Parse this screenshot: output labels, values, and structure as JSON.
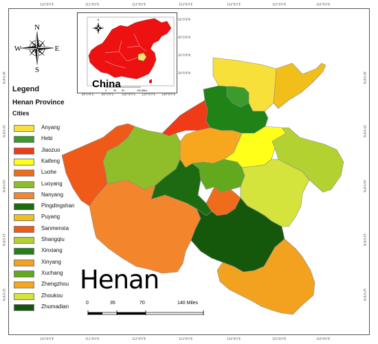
{
  "title": "Henan",
  "inset": {
    "label": "China",
    "scale_labels": [
      "0",
      "25",
      "50",
      "100 Miles"
    ],
    "lon_labels": [
      "60°0'0\"E",
      "80°0'0\"E",
      "100°0'0\"E",
      "120°0'0\"E",
      "140°0'0\"E"
    ],
    "lat_labels": [
      "50°0'0\"N",
      "40°0'0\"N",
      "30°0'0\"N",
      "20°0'0\"N"
    ]
  },
  "frame": {
    "lon_labels": [
      "110°0'0\"E",
      "111°0'0\"E",
      "112°0'0\"E",
      "113°0'0\"E",
      "114°0'0\"E",
      "115°0'0\"E",
      "116°0'0\"E"
    ],
    "lat_labels": [
      "36°0'0\"N",
      "35°0'0\"N",
      "34°0'0\"N",
      "33°0'0\"N",
      "32°0'0\"N"
    ]
  },
  "legend": {
    "title": "Legend",
    "subtitle": "Henan Province",
    "group_label": "Cities",
    "items": [
      {
        "label": "Anyang",
        "color": "#f7e03a"
      },
      {
        "label": "Hebi",
        "color": "#3b9b2b"
      },
      {
        "label": "Jiaozuo",
        "color": "#ef3b16"
      },
      {
        "label": "Kaifeng",
        "color": "#ffff1a"
      },
      {
        "label": "Luohe",
        "color": "#ee6c1a"
      },
      {
        "label": "Luoyang",
        "color": "#8fbe2a"
      },
      {
        "label": "Nanyang",
        "color": "#f3862c"
      },
      {
        "label": "Pingdingshan",
        "color": "#1c6b10"
      },
      {
        "label": "Puyang",
        "color": "#f2be1a"
      },
      {
        "label": "Sanmenxia",
        "color": "#f05a18"
      },
      {
        "label": "Shangqiu",
        "color": "#b3d232"
      },
      {
        "label": "Xinxiang",
        "color": "#1f8318"
      },
      {
        "label": "Xinyang",
        "color": "#f3a21f"
      },
      {
        "label": "Xuchang",
        "color": "#62a91e"
      },
      {
        "label": "Zhengzhou",
        "color": "#f7a71d"
      },
      {
        "label": "Zhoukou",
        "color": "#d4e43c"
      },
      {
        "label": "Zhumadian",
        "color": "#15580c"
      }
    ]
  },
  "scale_bar": {
    "labels": [
      "0",
      "35",
      "70",
      "140 Miles"
    ]
  },
  "compass": {
    "n": "N",
    "s": "S",
    "e": "E",
    "w": "W"
  },
  "inset_compass": {
    "n": "N"
  },
  "colors": {
    "china_fill": "#ee1111",
    "henan_highlight": "#f5e56b",
    "frame_border": "#555555"
  }
}
